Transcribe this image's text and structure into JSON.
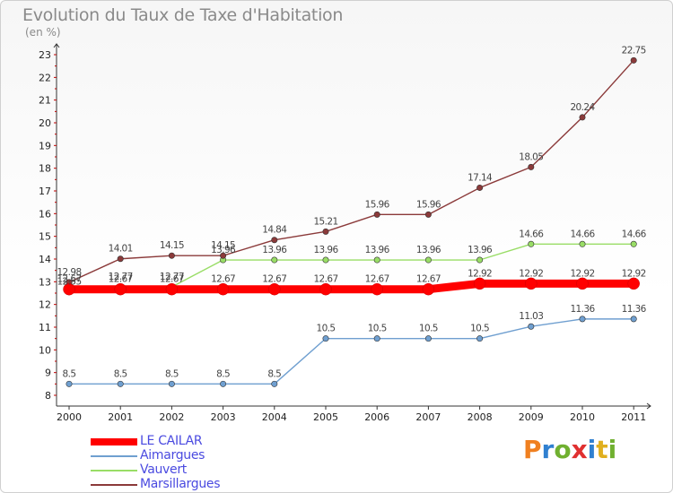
{
  "header": {
    "title": "Evolution du Taux de Taxe d'Habitation",
    "unit": "(en %)"
  },
  "brand": {
    "text": "Proxiti",
    "colors": [
      "#f08020",
      "#3080d0",
      "#70b030",
      "#e03030",
      "#3080d0",
      "#e0b020",
      "#70b030"
    ]
  },
  "chart_data": {
    "type": "line",
    "title": "Evolution du Taux de Taxe d'Habitation",
    "ylabel": "(en %)",
    "xlabel": "",
    "categories": [
      "2000",
      "2001",
      "2002",
      "2003",
      "2004",
      "2005",
      "2006",
      "2007",
      "2008",
      "2009",
      "2010",
      "2011"
    ],
    "y_ticks": [
      8,
      9,
      10,
      11,
      12,
      13,
      14,
      15,
      16,
      17,
      18,
      19,
      20,
      21,
      22,
      23
    ],
    "ylim": [
      8,
      23
    ],
    "grid": false,
    "legend_position": "bottom-left",
    "series": [
      {
        "name": "LE CAILAR",
        "color": "#ff0000",
        "values": [
          12.67,
          12.67,
          12.67,
          12.67,
          12.67,
          12.67,
          12.67,
          12.67,
          12.92,
          12.92,
          12.92,
          12.92
        ],
        "labels": [
          "12.67",
          "12.67",
          "12.67",
          "12.67",
          "12.67",
          "12.67",
          "12.67",
          "12.67",
          "12.92",
          "12.92",
          "12.92",
          "12.92"
        ]
      },
      {
        "name": "Aimargues",
        "color": "#6f9fd0",
        "values": [
          8.5,
          8.5,
          8.5,
          8.5,
          8.5,
          10.5,
          10.5,
          10.5,
          10.5,
          11.03,
          11.36,
          11.36
        ],
        "labels": [
          "8.5",
          "8.5",
          "8.5",
          "8.5",
          "8.5",
          "10.5",
          "10.5",
          "10.5",
          "10.5",
          "11.03",
          "11.36",
          "11.36"
        ]
      },
      {
        "name": "Vauvert",
        "color": "#99dd66",
        "values": [
          12.55,
          12.77,
          12.77,
          13.96,
          13.96,
          13.96,
          13.96,
          13.96,
          13.96,
          14.66,
          14.66,
          14.66
        ],
        "labels": [
          "12.55",
          "12.77",
          "12.77",
          "13.96",
          "13.96",
          "13.96",
          "13.96",
          "13.96",
          "13.96",
          "14.66",
          "14.66",
          "14.66"
        ]
      },
      {
        "name": "Marsillargues",
        "color": "#8b3a3a",
        "values": [
          12.98,
          14.01,
          14.15,
          14.15,
          14.84,
          15.21,
          15.96,
          15.96,
          17.14,
          18.05,
          20.24,
          22.75
        ],
        "labels": [
          "12.98",
          "14.01",
          "14.15",
          "14.15",
          "14.84",
          "15.21",
          "15.96",
          "15.96",
          "17.14",
          "18.05",
          "20.24",
          "22.75"
        ]
      }
    ]
  }
}
